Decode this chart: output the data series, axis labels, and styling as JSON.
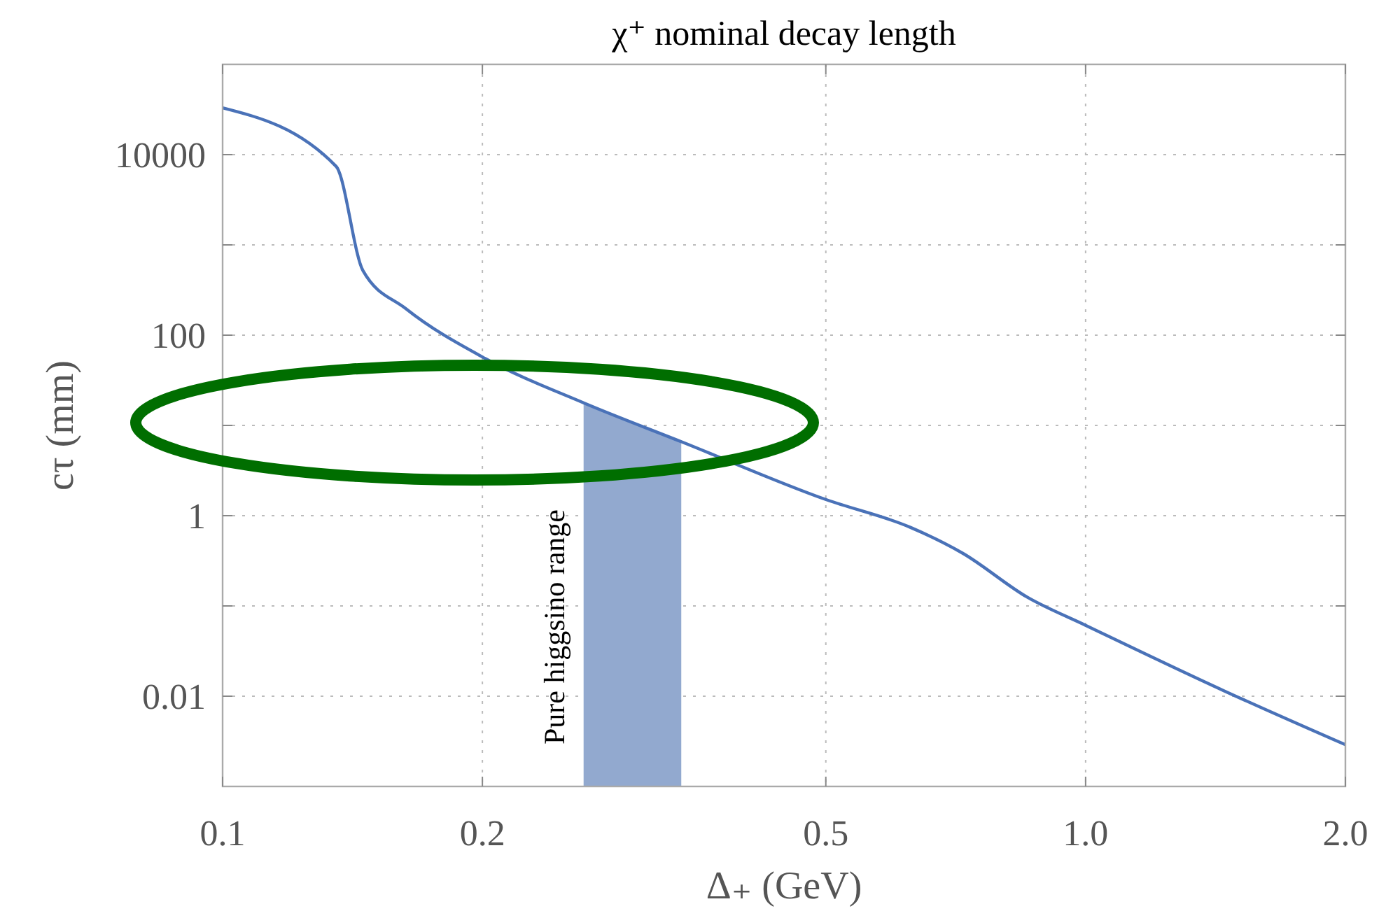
{
  "chart_data": {
    "type": "line",
    "title": "χ⁺ nominal decay length",
    "xlabel": "Δ₊ (GeV)",
    "ylabel": "cτ (mm)",
    "log": "xy",
    "grid": true,
    "xlim": [
      0.1,
      2.0
    ],
    "ylim": [
      0.001,
      100000
    ],
    "xticks": [
      0.1,
      0.2,
      0.5,
      {
        "value": 1.0,
        "label": "1.0"
      },
      {
        "value": 2.0,
        "label": "2.0"
      }
    ],
    "yticks": [
      0.01,
      {
        "value": 0.1,
        "label": null
      },
      1,
      {
        "value": 10,
        "label": null
      },
      100,
      {
        "value": 1000,
        "label": null
      },
      10000
    ],
    "series": [
      {
        "color": "#4a72b8",
        "x": [
          0.1,
          0.1354,
          0.1454,
          0.163,
          0.2016,
          0.262,
          0.34,
          0.501,
          0.627,
          0.72,
          0.857,
          1.0,
          1.446,
          2.0
        ],
        "values": [
          33000,
          7400,
          520,
          197,
          55,
          17.8,
          6.6,
          1.5,
          0.74,
          0.385,
          0.124,
          0.061,
          0.0115,
          0.0029
        ]
      }
    ],
    "bands": [
      {
        "axis": "x",
        "from": 0.262,
        "to": 0.34,
        "label": "Pure higgsino range",
        "color": "#92a9cf"
      }
    ]
  }
}
